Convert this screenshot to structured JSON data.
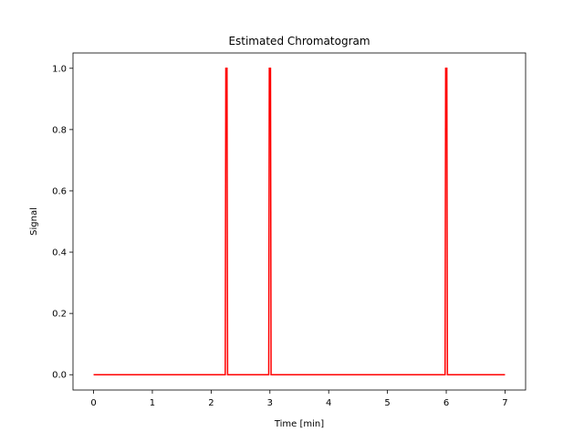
{
  "chart_data": {
    "type": "line",
    "title": "Estimated Chromatogram",
    "xlabel": "Time [min]",
    "ylabel": "Signal",
    "xlim": [
      -0.35,
      7.35
    ],
    "ylim": [
      -0.05,
      1.05
    ],
    "xticks": [
      0,
      1,
      2,
      3,
      4,
      5,
      6,
      7
    ],
    "xtick_labels": [
      "0",
      "1",
      "2",
      "3",
      "4",
      "5",
      "6",
      "7"
    ],
    "yticks": [
      0.0,
      0.2,
      0.4,
      0.6,
      0.8,
      1.0
    ],
    "ytick_labels": [
      "0.0",
      "0.2",
      "0.4",
      "0.6",
      "0.8",
      "1.0"
    ],
    "grid": false,
    "series": [
      {
        "color": "#ff0000",
        "x": [
          0,
          2.24,
          2.25,
          2.27,
          2.28,
          2.98,
          2.99,
          3.01,
          3.02,
          5.98,
          5.99,
          6.01,
          6.02,
          7
        ],
        "y": [
          0,
          0,
          1.0,
          1.0,
          0,
          0,
          1.0,
          1.0,
          0,
          0,
          1.0,
          1.0,
          0,
          0
        ]
      }
    ]
  }
}
